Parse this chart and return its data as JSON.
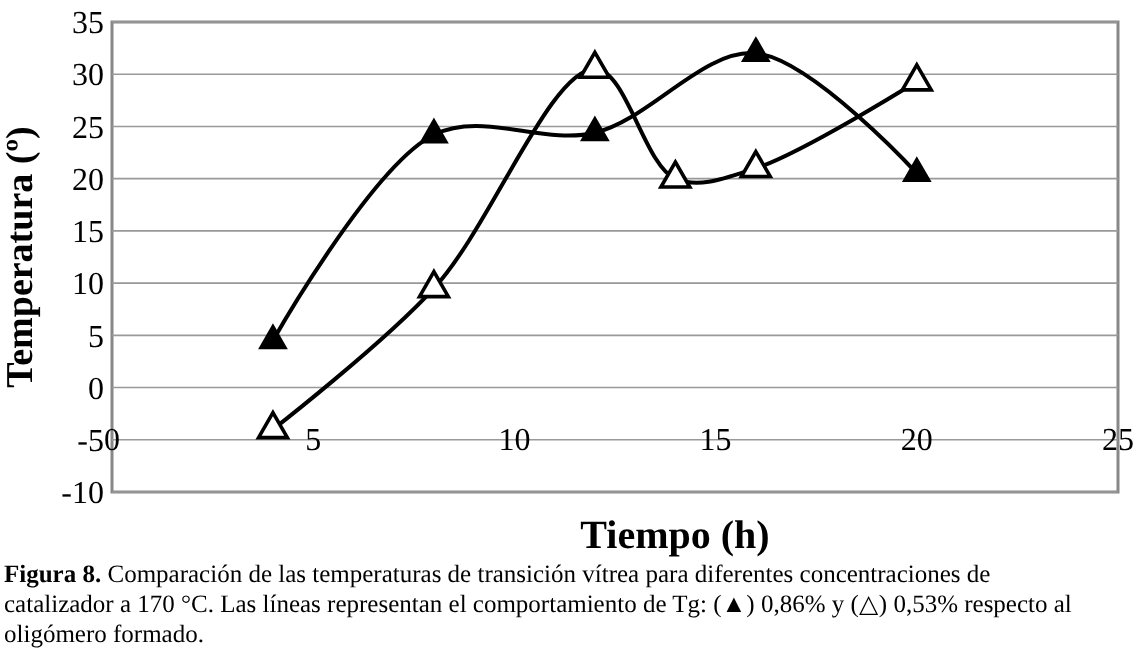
{
  "chart_data": {
    "type": "line",
    "xlabel": "Tiempo (h)",
    "ylabel": "Temperatura (º)",
    "xlim": [
      0,
      25
    ],
    "xticks": [
      0,
      5,
      10,
      15,
      20,
      25
    ],
    "ylim": [
      -10,
      35
    ],
    "yticks": [
      -10,
      -5,
      0,
      5,
      10,
      15,
      20,
      25,
      30,
      35
    ],
    "grid": "y",
    "marker": "triangle",
    "line_style": "solid",
    "series": [
      {
        "color": "#000000",
        "x": [
          4,
          8,
          12,
          16,
          20
        ],
        "values": [
          4.5,
          24.2,
          24.4,
          32,
          20.5
        ]
      },
      {
        "color": "#000000",
        "x": [
          4,
          8,
          12,
          14,
          16,
          20
        ],
        "values": [
          -4,
          9.5,
          30.5,
          20,
          21,
          29.3
        ]
      }
    ],
    "annotations": [
      "**Figura 8.** Comparación de las temperaturas de transición vítrea para diferentes concentraciones de catalizador  a 170 °C. Las líneas representan el comportamiento de Tg: (▲) 0,86% y (△) 0,53% respecto al oligómero  formado."
    ]
  }
}
